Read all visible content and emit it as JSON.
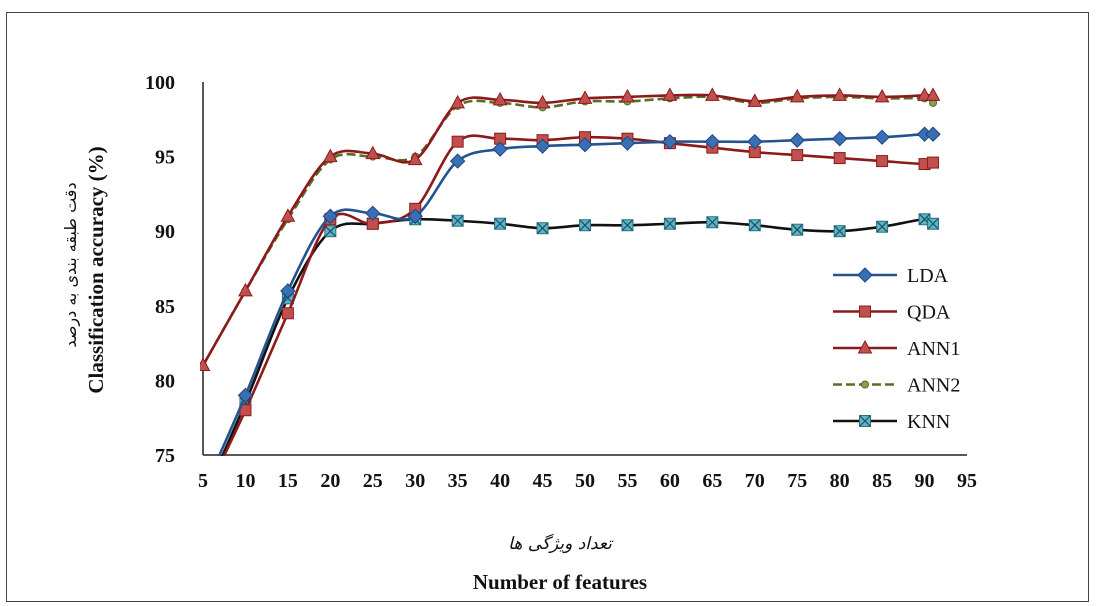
{
  "chart_data": {
    "type": "line",
    "xlabel": "Number of features",
    "xlabel_fa": "تعداد ویژگی ها",
    "ylabel": "Classification accuracy (%)",
    "ylabel_fa": "دقت طبقه بندی به درصد",
    "xlim": [
      5,
      95
    ],
    "ylim": [
      75,
      100
    ],
    "xticks": [
      5,
      10,
      15,
      20,
      25,
      30,
      35,
      40,
      45,
      50,
      55,
      60,
      65,
      70,
      75,
      80,
      85,
      90,
      95
    ],
    "yticks": [
      75,
      80,
      85,
      90,
      95,
      100
    ],
    "grid": false,
    "legend_position": "right",
    "x": [
      5,
      10,
      15,
      20,
      25,
      30,
      35,
      40,
      45,
      50,
      55,
      60,
      65,
      70,
      75,
      80,
      85,
      90,
      91
    ],
    "series": [
      {
        "name": "LDA",
        "color": "#24538f",
        "marker": "diamond",
        "dash": "solid",
        "values": [
          72.5,
          79,
          86,
          91,
          91.2,
          91,
          94.7,
          95.5,
          95.7,
          95.8,
          95.9,
          96,
          96,
          96,
          96.1,
          96.2,
          96.3,
          96.5,
          96.5
        ]
      },
      {
        "name": "QDA",
        "color": "#8c1a1a",
        "marker": "square",
        "dash": "solid",
        "values": [
          72,
          78,
          84.5,
          90.8,
          90.5,
          91.5,
          96,
          96.2,
          96.1,
          96.3,
          96.2,
          95.9,
          95.6,
          95.3,
          95.1,
          94.9,
          94.7,
          94.5,
          94.6
        ]
      },
      {
        "name": "ANN1",
        "color": "#8c1a1a",
        "marker": "triangle",
        "dash": "solid",
        "values": [
          81,
          86,
          91,
          95,
          95.2,
          94.8,
          98.6,
          98.8,
          98.6,
          98.9,
          99,
          99.1,
          99.1,
          98.7,
          99,
          99.1,
          99,
          99.1,
          99.1
        ]
      },
      {
        "name": "ANN2",
        "color": "#5a6b2a",
        "marker": "dot",
        "dash": "dashed",
        "values": [
          81,
          86,
          90.8,
          94.8,
          95,
          95,
          98.4,
          98.6,
          98.3,
          98.7,
          98.7,
          98.9,
          99,
          98.6,
          98.9,
          99,
          98.9,
          98.9,
          98.6
        ]
      },
      {
        "name": "KNN",
        "color": "#111111",
        "marker": "xsquare",
        "dash": "solid",
        "values": [
          72,
          78.5,
          85.5,
          90,
          90.5,
          90.8,
          90.7,
          90.5,
          90.2,
          90.4,
          90.4,
          90.5,
          90.6,
          90.4,
          90.1,
          90,
          90.3,
          90.8,
          90.5
        ]
      }
    ]
  }
}
